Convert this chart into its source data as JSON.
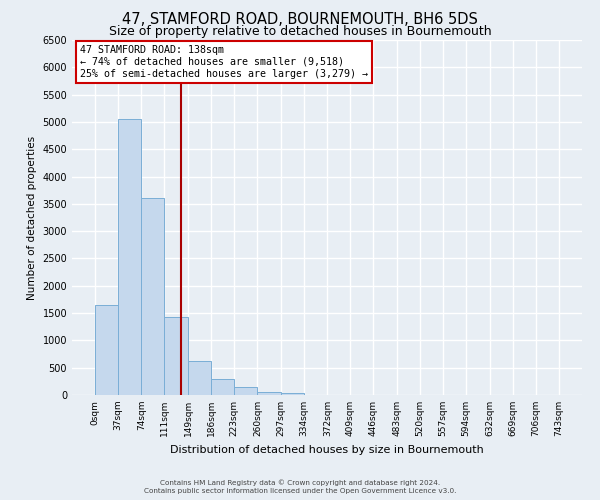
{
  "title": "47, STAMFORD ROAD, BOURNEMOUTH, BH6 5DS",
  "subtitle": "Size of property relative to detached houses in Bournemouth",
  "xlabel": "Distribution of detached houses by size in Bournemouth",
  "ylabel": "Number of detached properties",
  "bin_edges": [
    0,
    37,
    74,
    111,
    149,
    186,
    223,
    260,
    297,
    334,
    372,
    409,
    446,
    483,
    520,
    557,
    594,
    632,
    669,
    706,
    743
  ],
  "bar_heights": [
    1650,
    5050,
    3600,
    1430,
    620,
    300,
    150,
    50,
    30,
    5,
    0,
    0,
    0,
    0,
    0,
    0,
    0,
    0,
    0,
    0
  ],
  "bar_color": "#c5d8ed",
  "bar_edgecolor": "#7aaed6",
  "vline_x": 138,
  "vline_color": "#aa0000",
  "ylim": [
    0,
    6500
  ],
  "yticks": [
    0,
    500,
    1000,
    1500,
    2000,
    2500,
    3000,
    3500,
    4000,
    4500,
    5000,
    5500,
    6000,
    6500
  ],
  "annotation_title": "47 STAMFORD ROAD: 138sqm",
  "annotation_line1": "← 74% of detached houses are smaller (9,518)",
  "annotation_line2": "25% of semi-detached houses are larger (3,279) →",
  "annotation_box_facecolor": "#ffffff",
  "annotation_box_edgecolor": "#cc0000",
  "footer_line1": "Contains HM Land Registry data © Crown copyright and database right 2024.",
  "footer_line2": "Contains public sector information licensed under the Open Government Licence v3.0.",
  "background_color": "#e8eef4",
  "plot_background": "#e8eef4",
  "grid_color": "#ffffff",
  "title_fontsize": 10.5,
  "subtitle_fontsize": 9
}
